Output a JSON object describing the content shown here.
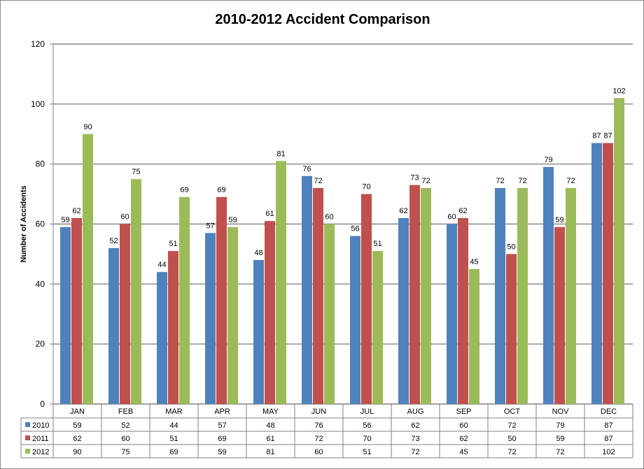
{
  "chart_data": {
    "type": "bar",
    "title": "2010-2012 Accident Comparison",
    "xlabel": "",
    "ylabel": "Number of Accidents",
    "ylim": [
      0,
      120
    ],
    "yticks": [
      0,
      20,
      40,
      60,
      80,
      100,
      120
    ],
    "grid": true,
    "legend": "data-table",
    "categories": [
      "JAN",
      "FEB",
      "MAR",
      "APR",
      "MAY",
      "JUN",
      "JUL",
      "AUG",
      "SEP",
      "OCT",
      "NOV",
      "DEC"
    ],
    "series": [
      {
        "name": "2010",
        "color": "#4F81BD",
        "values": [
          59,
          52,
          44,
          57,
          48,
          76,
          56,
          62,
          60,
          72,
          79,
          87
        ]
      },
      {
        "name": "2011",
        "color": "#C0504D",
        "values": [
          62,
          60,
          51,
          69,
          61,
          72,
          70,
          73,
          62,
          50,
          59,
          87
        ]
      },
      {
        "name": "2012",
        "color": "#9BBB59",
        "values": [
          90,
          75,
          69,
          59,
          81,
          60,
          51,
          72,
          45,
          72,
          72,
          102
        ]
      }
    ]
  }
}
